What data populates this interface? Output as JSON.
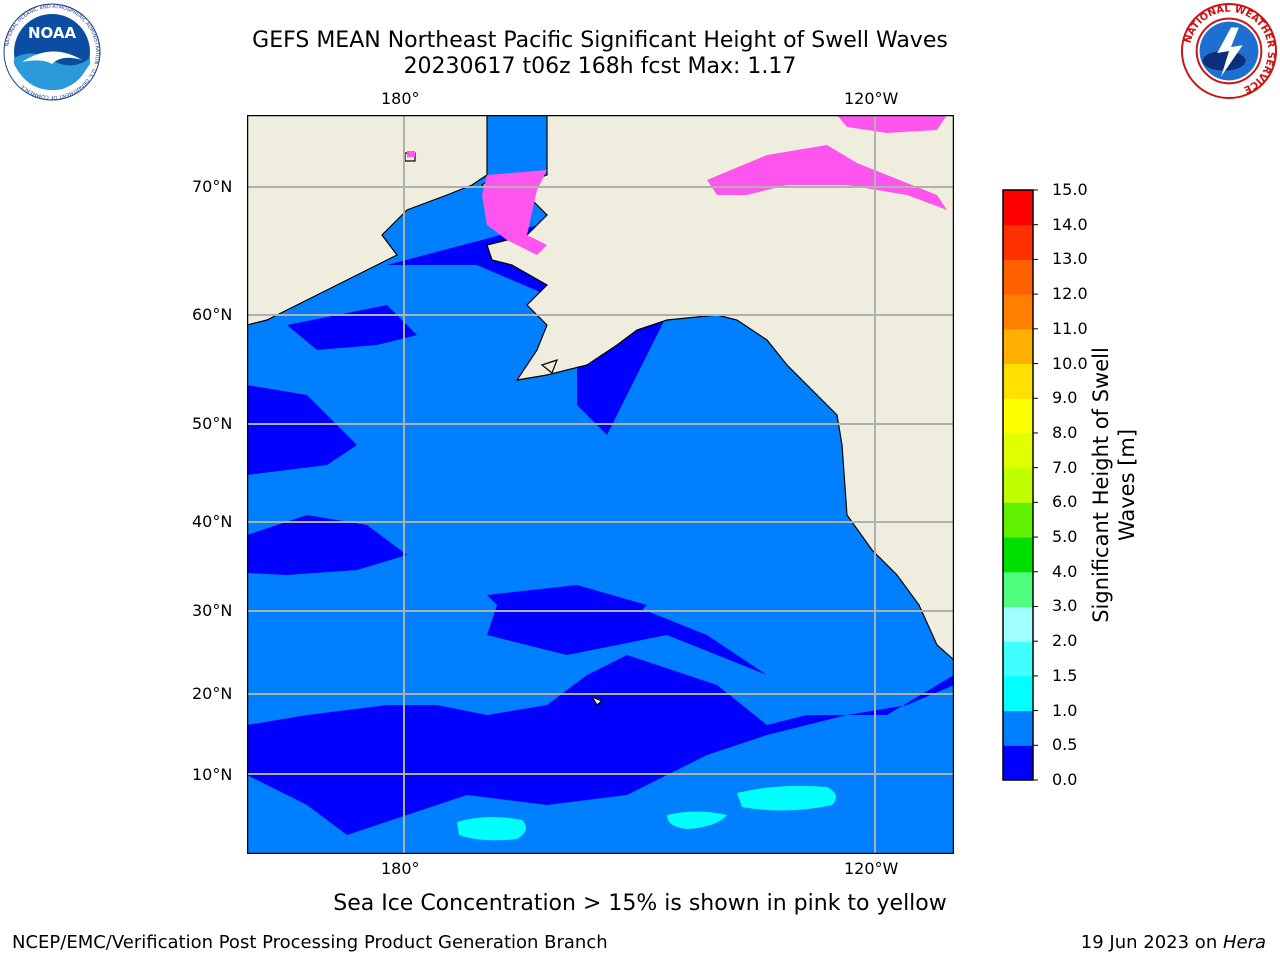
{
  "header": {
    "title_line1": "GEFS MEAN Northeast Pacific Significant Height of Swell Waves",
    "title_line2": "20230617 t06z 168h fcst   Max: 1.17"
  },
  "logos": {
    "noaa": {
      "badge": "NOAA",
      "ring_text": "NATIONAL OCEANIC AND ATMOSPHERIC ADMINISTRATION · U.S. DEPARTMENT OF COMMERCE"
    },
    "nws": {
      "ring_text": "NATIONAL WEATHER SERVICE"
    }
  },
  "map": {
    "lon_labels_top": [
      "180°",
      "120°W"
    ],
    "lon_labels_bottom": [
      "180°",
      "120°W"
    ],
    "lat_labels": [
      "70°N",
      "60°N",
      "50°N",
      "40°N",
      "30°N",
      "20°N",
      "10°N"
    ],
    "colors": {
      "land": "#efedde",
      "ocean_low": "#0000ff",
      "ocean_mid": "#0080ff",
      "ocean_high": "#00ffff",
      "grid": "#b0b0b0",
      "ice_pink": "#ff55ee",
      "ice_orange": "#ffa040",
      "ice_yellow": "#ffee00"
    }
  },
  "colorbar": {
    "title_line1": "Significant Height of Swell",
    "title_line2": "Waves [m]",
    "ticks": [
      "0.0",
      "0.5",
      "1.0",
      "1.5",
      "2.0",
      "3.0",
      "4.0",
      "5.0",
      "6.0",
      "7.0",
      "8.0",
      "9.0",
      "10.0",
      "11.0",
      "12.0",
      "13.0",
      "14.0",
      "15.0"
    ],
    "colors": [
      "#0000ff",
      "#0080ff",
      "#00ffff",
      "#40ffff",
      "#a0ffff",
      "#50ff80",
      "#00e000",
      "#60f000",
      "#c0ff00",
      "#e0ff00",
      "#ffff00",
      "#ffe000",
      "#ffb000",
      "#ff8000",
      "#ff6000",
      "#ff3000",
      "#ff0000"
    ]
  },
  "caption": "Sea Ice Concentration > 15% is shown in pink to yellow",
  "footer": {
    "left": "NCEP/EMC/Verification Post Processing Product Generation Branch",
    "right_prefix": "19 Jun 2023 on ",
    "right_host": "Hera"
  }
}
